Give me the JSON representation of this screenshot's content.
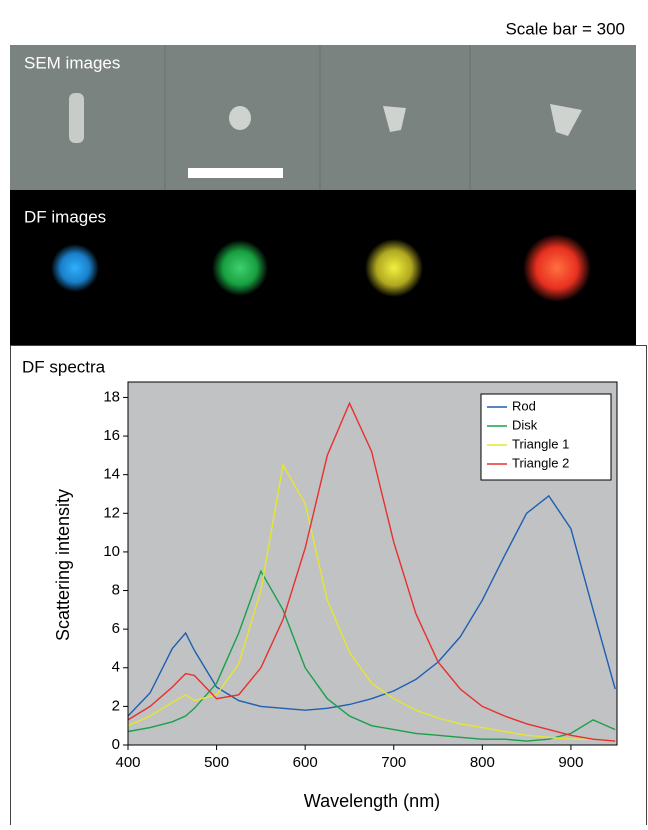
{
  "scale_bar_label": "Scale bar = 300",
  "panels": {
    "sem": "SEM images",
    "df": "DF images",
    "spectra": "DF spectra"
  },
  "chart_data": {
    "type": "line",
    "x_label": "Wavelength (nm)",
    "y_label": "Scattering intensity",
    "x": [
      400,
      425,
      450,
      465,
      475,
      500,
      525,
      550,
      575,
      600,
      625,
      650,
      675,
      700,
      725,
      750,
      775,
      800,
      825,
      850,
      875,
      900,
      925,
      950
    ],
    "series": [
      {
        "name": "Rod",
        "color": "#1f5fb0",
        "values": [
          1.5,
          2.7,
          5.0,
          5.8,
          4.9,
          3.0,
          2.3,
          2.0,
          1.9,
          1.8,
          1.9,
          2.1,
          2.4,
          2.8,
          3.4,
          4.3,
          5.6,
          7.5,
          9.8,
          12.0,
          12.9,
          11.2,
          7.0,
          2.9
        ]
      },
      {
        "name": "Disk",
        "color": "#1aa04a",
        "values": [
          0.7,
          0.9,
          1.2,
          1.5,
          1.9,
          3.2,
          5.8,
          9.0,
          7.0,
          4.0,
          2.4,
          1.5,
          1.0,
          0.8,
          0.6,
          0.5,
          0.4,
          0.3,
          0.3,
          0.2,
          0.3,
          0.6,
          1.3,
          0.8
        ]
      },
      {
        "name": "Triangle 1",
        "color": "#e6e62e",
        "values": [
          1.0,
          1.5,
          2.2,
          2.6,
          2.3,
          2.6,
          4.2,
          8.0,
          14.5,
          12.5,
          7.5,
          4.8,
          3.2,
          2.4,
          1.8,
          1.4,
          1.1,
          0.9,
          0.7,
          0.5,
          0.4,
          0.3,
          0.3,
          0.2
        ]
      },
      {
        "name": "Triangle 2",
        "color": "#e8302e",
        "values": [
          1.3,
          2.0,
          3.0,
          3.7,
          3.6,
          2.4,
          2.6,
          4.0,
          6.5,
          10.2,
          15.0,
          17.7,
          15.2,
          10.5,
          6.8,
          4.3,
          2.9,
          2.0,
          1.5,
          1.1,
          0.8,
          0.5,
          0.3,
          0.2
        ]
      }
    ],
    "xlim": [
      400,
      952
    ],
    "ylim": [
      0,
      18.8
    ],
    "xticks": [
      400,
      500,
      600,
      700,
      800,
      900
    ],
    "yticks": [
      0,
      2,
      4,
      6,
      8,
      10,
      12,
      14,
      16,
      18
    ],
    "grid": false,
    "legend": "upper-right",
    "background": "#c0c2c4"
  }
}
